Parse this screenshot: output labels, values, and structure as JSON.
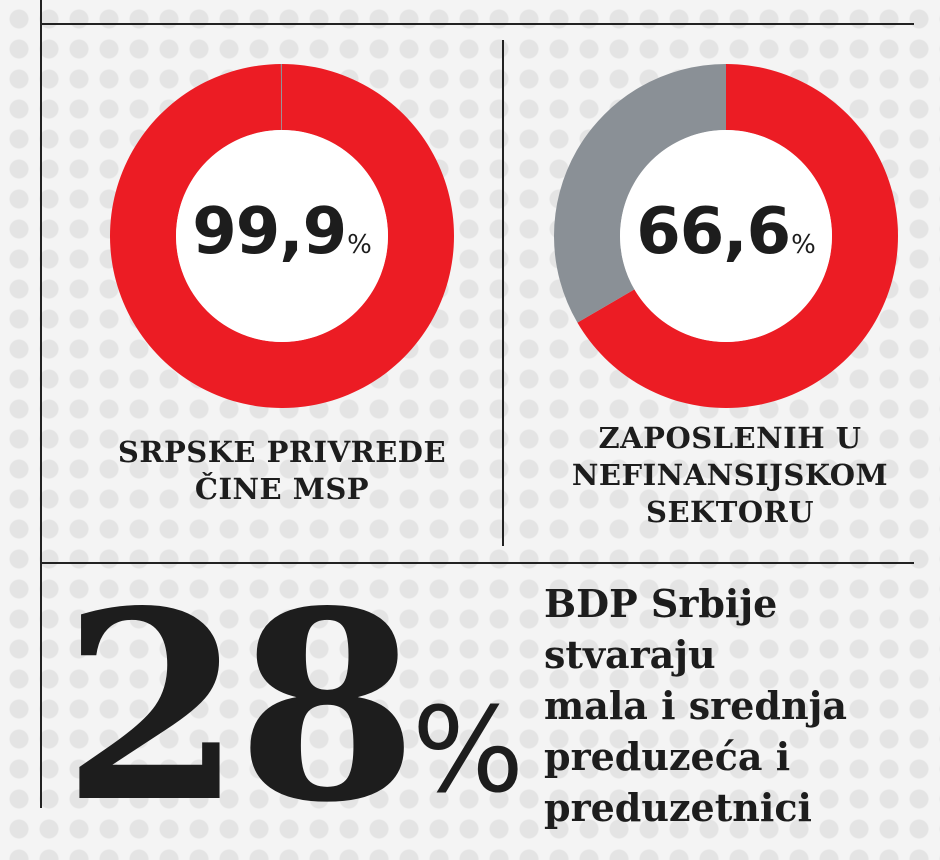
{
  "chart_data": [
    {
      "type": "pie",
      "style": "donut",
      "values": [
        99.9,
        0.1
      ],
      "colors": [
        "#ec1c24",
        "#8a9096"
      ],
      "center_value": "99,9",
      "center_unit": "%",
      "caption_lines": [
        "SRPSKE PRIVREDE",
        "ČINE MSP"
      ]
    },
    {
      "type": "pie",
      "style": "donut",
      "values": [
        66.6,
        33.4
      ],
      "colors": [
        "#ec1c24",
        "#8a9096"
      ],
      "center_value": "66,6",
      "center_unit": "%",
      "caption_lines": [
        "ZAPOSLENIH U",
        "NEFINANSIJSKOM",
        "SEKTORU"
      ]
    }
  ],
  "stat": {
    "value": "28",
    "unit": "%",
    "description_lines": [
      "BDP Srbije",
      "stvaraju",
      "mala i srednja",
      "preduzeća i",
      "preduzetnici"
    ]
  },
  "colors": {
    "accent": "#ec1c24",
    "secondary": "#8a9096",
    "text": "#1d1d1d",
    "rule": "#222222"
  }
}
